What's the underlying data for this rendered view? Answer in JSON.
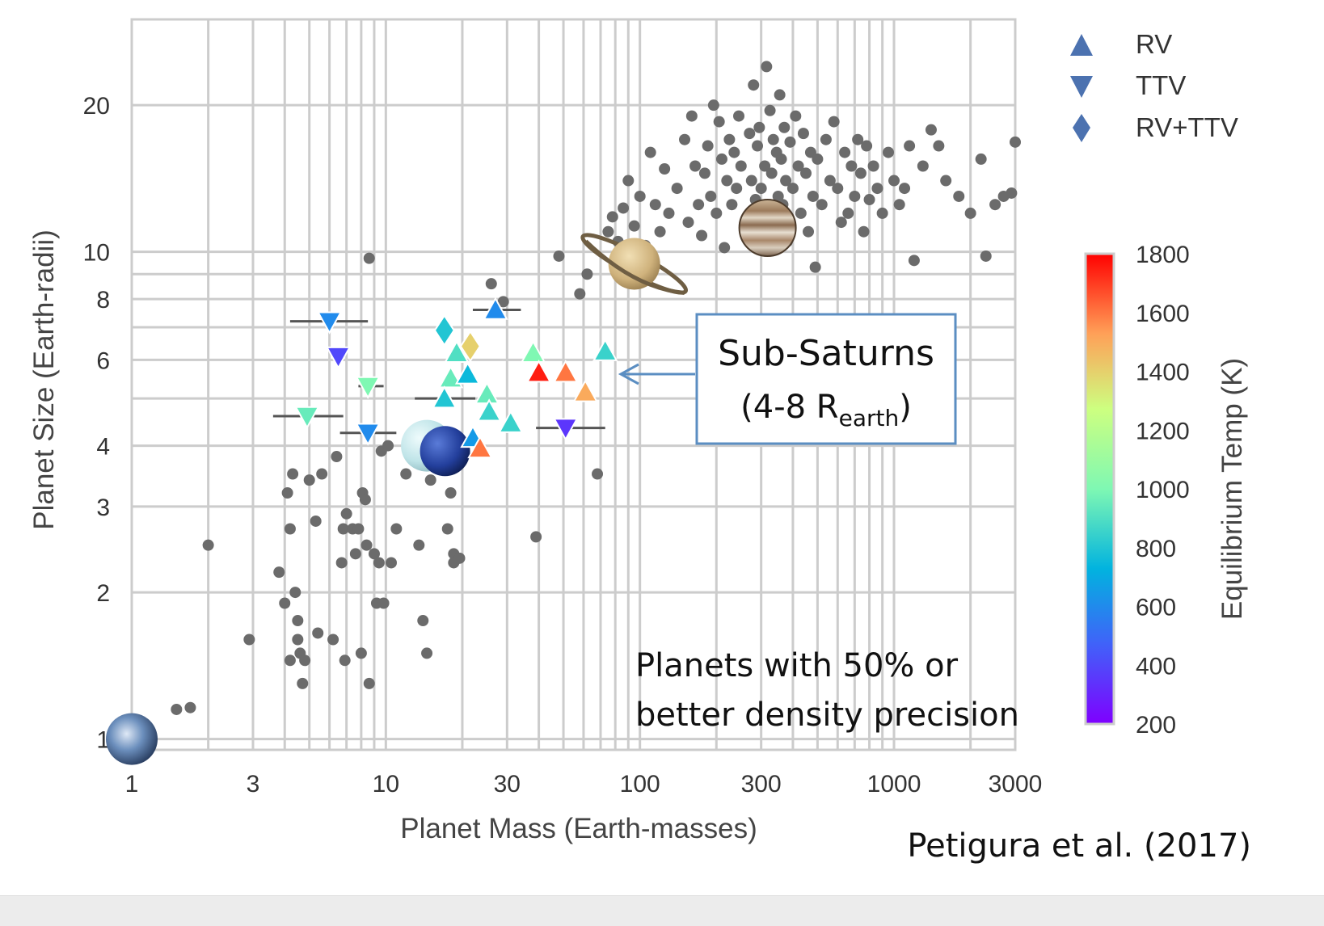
{
  "chart_data": {
    "type": "scatter",
    "xlabel": "Planet Mass (Earth-masses)",
    "ylabel": "Planet Size (Earth-radii)",
    "xscale": "log",
    "yscale": "log",
    "xlim": [
      1,
      3000
    ],
    "ylim": [
      0.95,
      30
    ],
    "grid": true,
    "x_ticks": [
      1,
      3,
      10,
      30,
      100,
      300,
      1000,
      3000
    ],
    "x_tick_labels": [
      "1",
      "3",
      "10",
      "30",
      "100",
      "300",
      "1000",
      "3000"
    ],
    "y_ticks": [
      1,
      2,
      3,
      4,
      6,
      8,
      10,
      20
    ],
    "y_tick_labels": [
      "1",
      "2",
      "3",
      "4",
      "6",
      "8",
      "10",
      "20"
    ],
    "legend": {
      "placement": "top-right",
      "entries": [
        {
          "label": "RV",
          "marker": "triangle-up"
        },
        {
          "label": "TTV",
          "marker": "triangle-down"
        },
        {
          "label": "RV+TTV",
          "marker": "diamond"
        }
      ],
      "marker_color": "#4c72b0"
    },
    "colorbar": {
      "label": "Equilibrium Temp (K)",
      "min": 200,
      "max": 1800,
      "ticks": [
        200,
        400,
        600,
        800,
        1000,
        1200,
        1400,
        1600,
        1800
      ],
      "colormap": "rainbow"
    },
    "background_color": "#6b6b6b",
    "background_points": [
      [
        1.5,
        1.15
      ],
      [
        1.7,
        1.16
      ],
      [
        2.0,
        2.5
      ],
      [
        2.9,
        1.6
      ],
      [
        3.8,
        2.2
      ],
      [
        4.0,
        1.9
      ],
      [
        4.1,
        3.2
      ],
      [
        4.2,
        2.7
      ],
      [
        4.3,
        3.5
      ],
      [
        4.4,
        2.0
      ],
      [
        4.5,
        1.75
      ],
      [
        4.6,
        1.5
      ],
      [
        4.2,
        1.45
      ],
      [
        4.5,
        1.6
      ],
      [
        4.8,
        1.45
      ],
      [
        4.7,
        1.3
      ],
      [
        5.0,
        3.4
      ],
      [
        5.3,
        2.8
      ],
      [
        5.4,
        1.65
      ],
      [
        5.6,
        3.5
      ],
      [
        6.2,
        1.6
      ],
      [
        6.4,
        3.8
      ],
      [
        6.8,
        2.7
      ],
      [
        6.7,
        2.3
      ],
      [
        6.9,
        1.45
      ],
      [
        7.0,
        2.9
      ],
      [
        7.4,
        2.7
      ],
      [
        7.6,
        2.4
      ],
      [
        7.8,
        2.7
      ],
      [
        8.0,
        1.5
      ],
      [
        8.1,
        3.2
      ],
      [
        8.3,
        3.1
      ],
      [
        8.4,
        2.5
      ],
      [
        8.6,
        1.3
      ],
      [
        9.0,
        2.4
      ],
      [
        9.2,
        1.9
      ],
      [
        9.4,
        2.3
      ],
      [
        9.8,
        1.9
      ],
      [
        9.6,
        3.9
      ],
      [
        10.2,
        4.0
      ],
      [
        10.5,
        2.3
      ],
      [
        11.0,
        2.7
      ],
      [
        8.6,
        9.7
      ],
      [
        12.0,
        3.5
      ],
      [
        13.0,
        4.0
      ],
      [
        13.5,
        2.5
      ],
      [
        14.0,
        1.75
      ],
      [
        14.5,
        1.5
      ],
      [
        15.0,
        3.4
      ],
      [
        16.0,
        4.1
      ],
      [
        17.5,
        2.7
      ],
      [
        18.0,
        3.2
      ],
      [
        18.5,
        2.4
      ],
      [
        18.5,
        2.3
      ],
      [
        19.5,
        2.35
      ],
      [
        26.0,
        8.6
      ],
      [
        29.0,
        7.9
      ],
      [
        39.0,
        2.6
      ],
      [
        48.0,
        9.8
      ],
      [
        58.0,
        8.2
      ],
      [
        62.0,
        9.0
      ],
      [
        68.0,
        3.5
      ],
      [
        75.0,
        11.0
      ],
      [
        78.0,
        11.8
      ],
      [
        82.0,
        10.5
      ],
      [
        86.0,
        12.3
      ],
      [
        90.0,
        14.0
      ],
      [
        95.0,
        11.3
      ],
      [
        100.0,
        13.0
      ],
      [
        105.0,
        10.3
      ],
      [
        110.0,
        16.0
      ],
      [
        115.0,
        12.5
      ],
      [
        120.0,
        11.0
      ],
      [
        125.0,
        14.8
      ],
      [
        130.0,
        12.0
      ],
      [
        140.0,
        13.5
      ],
      [
        150.0,
        17.0
      ],
      [
        155.0,
        11.5
      ],
      [
        160.0,
        19.0
      ],
      [
        165.0,
        15.0
      ],
      [
        170.0,
        12.5
      ],
      [
        175.0,
        10.8
      ],
      [
        180.0,
        14.5
      ],
      [
        185.0,
        16.5
      ],
      [
        190.0,
        13.0
      ],
      [
        195.0,
        20.0
      ],
      [
        200.0,
        12.0
      ],
      [
        205.0,
        18.5
      ],
      [
        210.0,
        15.5
      ],
      [
        215.0,
        10.2
      ],
      [
        220.0,
        14.0
      ],
      [
        225.0,
        17.0
      ],
      [
        230.0,
        12.5
      ],
      [
        235.0,
        16.0
      ],
      [
        240.0,
        13.5
      ],
      [
        245.0,
        19.0
      ],
      [
        250.0,
        15.0
      ],
      [
        260.0,
        11.5
      ],
      [
        270.0,
        17.5
      ],
      [
        275.0,
        14.0
      ],
      [
        280.0,
        22.0
      ],
      [
        285.0,
        12.8
      ],
      [
        290.0,
        16.5
      ],
      [
        295.0,
        18.0
      ],
      [
        300.0,
        13.5
      ],
      [
        305.0,
        10.8
      ],
      [
        310.0,
        15.0
      ],
      [
        315.0,
        24.0
      ],
      [
        320.0,
        12.2
      ],
      [
        325.0,
        19.5
      ],
      [
        330.0,
        14.5
      ],
      [
        335.0,
        17.0
      ],
      [
        340.0,
        11.8
      ],
      [
        345.0,
        16.0
      ],
      [
        350.0,
        13.0
      ],
      [
        355.0,
        21.0
      ],
      [
        360.0,
        15.5
      ],
      [
        365.0,
        12.5
      ],
      [
        370.0,
        18.0
      ],
      [
        375.0,
        14.0
      ],
      [
        380.0,
        10.5
      ],
      [
        390.0,
        16.8
      ],
      [
        400.0,
        13.5
      ],
      [
        410.0,
        19.0
      ],
      [
        420.0,
        15.0
      ],
      [
        430.0,
        12.0
      ],
      [
        440.0,
        17.5
      ],
      [
        450.0,
        14.5
      ],
      [
        460.0,
        11.0
      ],
      [
        470.0,
        16.0
      ],
      [
        480.0,
        13.0
      ],
      [
        490.0,
        9.3
      ],
      [
        500.0,
        15.5
      ],
      [
        520.0,
        12.5
      ],
      [
        540.0,
        17.0
      ],
      [
        560.0,
        14.0
      ],
      [
        580.0,
        18.5
      ],
      [
        600.0,
        13.5
      ],
      [
        620.0,
        11.5
      ],
      [
        640.0,
        16.0
      ],
      [
        660.0,
        12.0
      ],
      [
        680.0,
        15.0
      ],
      [
        700.0,
        13.0
      ],
      [
        720.0,
        17.0
      ],
      [
        740.0,
        14.5
      ],
      [
        760.0,
        11.0
      ],
      [
        780.0,
        16.5
      ],
      [
        800.0,
        12.8
      ],
      [
        830.0,
        15.0
      ],
      [
        860.0,
        13.5
      ],
      [
        900.0,
        12.0
      ],
      [
        950.0,
        16.0
      ],
      [
        1000.0,
        14.0
      ],
      [
        1050.0,
        12.5
      ],
      [
        1100.0,
        13.5
      ],
      [
        1150.0,
        16.5
      ],
      [
        1200.0,
        9.6
      ],
      [
        1300.0,
        15.0
      ],
      [
        1400.0,
        17.8
      ],
      [
        1500.0,
        16.5
      ],
      [
        1600.0,
        14.0
      ],
      [
        1800.0,
        13.0
      ],
      [
        2000.0,
        12.0
      ],
      [
        2200.0,
        15.5
      ],
      [
        2300.0,
        9.8
      ],
      [
        2500.0,
        12.5
      ],
      [
        2700.0,
        13.0
      ],
      [
        2900.0,
        13.2
      ],
      [
        3000.0,
        16.8
      ]
    ],
    "measured_planets": [
      {
        "x": 6.0,
        "y": 7.2,
        "marker": "triangle-down",
        "teq": 600,
        "xerr": [
          4.2,
          8.5
        ]
      },
      {
        "x": 6.5,
        "y": 6.1,
        "marker": "triangle-down",
        "teq": 400
      },
      {
        "x": 8.5,
        "y": 5.3,
        "marker": "triangle-down",
        "teq": 1000,
        "xerr": [
          7.8,
          9.8
        ]
      },
      {
        "x": 4.9,
        "y": 4.6,
        "marker": "triangle-down",
        "teq": 950,
        "xerr": [
          3.6,
          6.8
        ]
      },
      {
        "x": 8.5,
        "y": 4.25,
        "marker": "triangle-down",
        "teq": 600,
        "xerr": [
          6.6,
          11.0
        ]
      },
      {
        "x": 17.0,
        "y": 6.9,
        "marker": "diamond",
        "teq": 800
      },
      {
        "x": 21.5,
        "y": 6.4,
        "marker": "diamond",
        "teq": 1400
      },
      {
        "x": 19.0,
        "y": 6.2,
        "marker": "triangle-up",
        "teq": 900
      },
      {
        "x": 18.0,
        "y": 5.5,
        "marker": "triangle-up",
        "teq": 950
      },
      {
        "x": 21.0,
        "y": 5.6,
        "marker": "triangle-up",
        "teq": 750
      },
      {
        "x": 17.0,
        "y": 5.0,
        "marker": "triangle-up",
        "teq": 800,
        "xerr": [
          13.0,
          22.5
        ]
      },
      {
        "x": 25.0,
        "y": 5.1,
        "marker": "triangle-up",
        "teq": 950
      },
      {
        "x": 25.5,
        "y": 4.7,
        "marker": "triangle-up",
        "teq": 850
      },
      {
        "x": 31.0,
        "y": 4.45,
        "marker": "triangle-up",
        "teq": 850
      },
      {
        "x": 27.0,
        "y": 7.6,
        "marker": "triangle-up",
        "teq": 600,
        "xerr": [
          22.0,
          34.0
        ]
      },
      {
        "x": 22.0,
        "y": 4.15,
        "marker": "triangle-up",
        "teq": 650
      },
      {
        "x": 23.5,
        "y": 3.95,
        "marker": "triangle-up",
        "teq": 1600
      },
      {
        "x": 38.0,
        "y": 6.2,
        "marker": "triangle-up",
        "teq": 1000
      },
      {
        "x": 40.0,
        "y": 5.65,
        "marker": "triangle-up",
        "teq": 1750
      },
      {
        "x": 51.0,
        "y": 5.65,
        "marker": "triangle-up",
        "teq": 1600
      },
      {
        "x": 61.0,
        "y": 5.15,
        "marker": "triangle-up",
        "teq": 1500
      },
      {
        "x": 73.0,
        "y": 6.25,
        "marker": "triangle-up",
        "teq": 850
      },
      {
        "x": 51.0,
        "y": 4.35,
        "marker": "triangle-down",
        "teq": 350,
        "xerr": [
          39.0,
          73.0
        ]
      }
    ],
    "solar_system": [
      {
        "x": 1.0,
        "y": 1.0,
        "body": "earth"
      },
      {
        "x": 14.5,
        "y": 4.0,
        "body": "uranus"
      },
      {
        "x": 17.1,
        "y": 3.9,
        "body": "neptune"
      },
      {
        "x": 95.0,
        "y": 9.45,
        "body": "saturn"
      },
      {
        "x": 318.0,
        "y": 11.2,
        "body": "jupiter"
      }
    ],
    "annotations": {
      "sub_saturns_title": "Sub-Saturns",
      "sub_saturns_range_prefix": "(4-8 R",
      "sub_saturns_range_sub": "earth",
      "sub_saturns_range_suffix": ")",
      "precision_line1": "Planets with 50% or",
      "precision_line2": "better density precision",
      "citation": "Petigura et al. (2017)",
      "box_color": "#5b8ec2"
    }
  }
}
